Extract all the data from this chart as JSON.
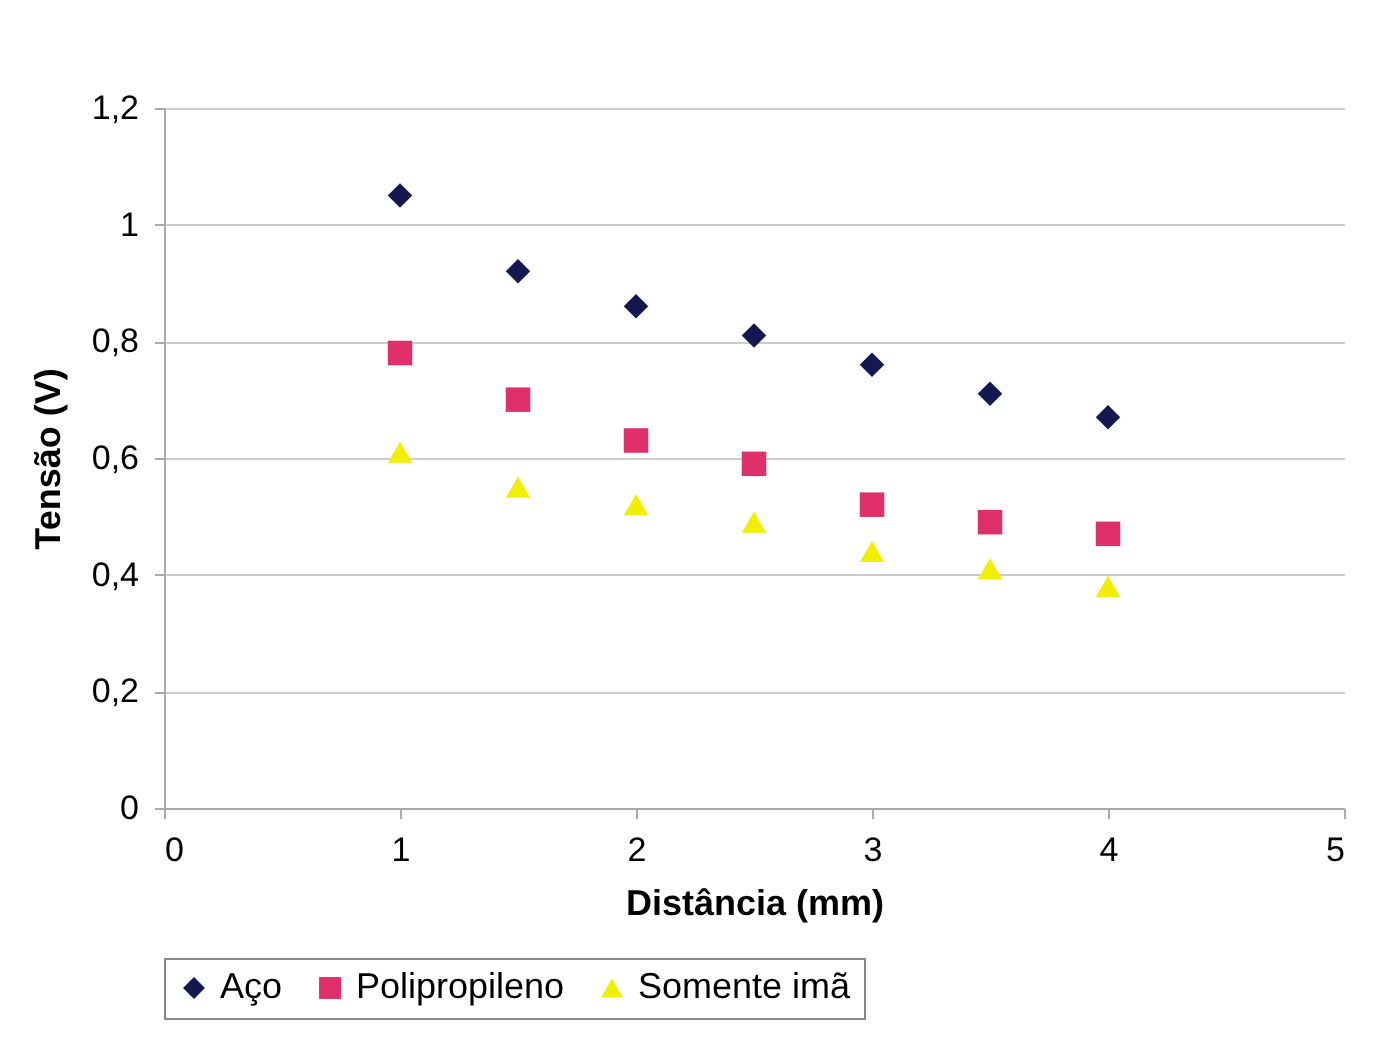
{
  "chart_data": {
    "type": "scatter",
    "xlabel": "Distância (mm)",
    "ylabel": "Tensão (V)",
    "x": [
      1,
      1.5,
      2,
      2.5,
      3,
      3.5,
      4
    ],
    "series": [
      {
        "name": "Aço",
        "color": "#141850",
        "marker": "diamond",
        "values": [
          1.05,
          0.92,
          0.86,
          0.81,
          0.76,
          0.71,
          0.67
        ]
      },
      {
        "name": "Polipropileno",
        "color": "#e0306a",
        "marker": "square",
        "values": [
          0.78,
          0.7,
          0.63,
          0.59,
          0.52,
          0.49,
          0.47
        ]
      },
      {
        "name": "Somente imã",
        "color": "#f2ee00",
        "marker": "triangle",
        "values": [
          0.61,
          0.55,
          0.52,
          0.49,
          0.44,
          0.41,
          0.38
        ]
      }
    ],
    "xlim": [
      0,
      5
    ],
    "xticks": [
      0,
      1,
      2,
      3,
      4,
      5
    ],
    "ylim": [
      0,
      1.2
    ],
    "yticks": [
      0,
      {
        "value": 0.2,
        "label": "0,2"
      },
      {
        "value": 0.4,
        "label": "0,4"
      },
      {
        "value": 0.6,
        "label": "0,6"
      },
      {
        "value": 0.8,
        "label": "0,8"
      },
      1,
      {
        "value": 1.2,
        "label": "1,2"
      }
    ],
    "grid": "y",
    "legend": "bottom"
  }
}
